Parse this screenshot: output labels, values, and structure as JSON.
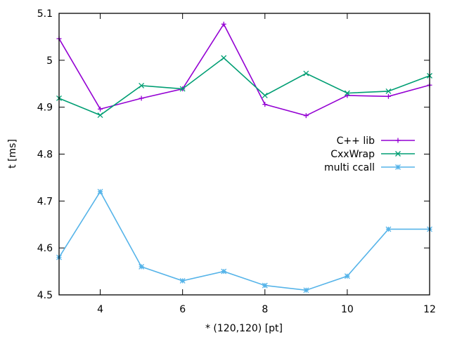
{
  "chart_data": {
    "type": "line",
    "title": "",
    "xlabel": "* (120,120) [pt]",
    "ylabel": "t [ms]",
    "xlim": [
      3,
      12
    ],
    "ylim": [
      4.5,
      5.1
    ],
    "xticks": [
      4,
      6,
      8,
      10,
      12
    ],
    "yticks": [
      4.5,
      4.6,
      4.7,
      4.8,
      4.9,
      5.0,
      5.1
    ],
    "xtick_labels": [
      "4",
      "6",
      "8",
      "10",
      "12"
    ],
    "ytick_labels": [
      "4.5",
      "4.6",
      "4.7",
      "4.8",
      "4.9",
      "5",
      "5.1"
    ],
    "grid": false,
    "legend_position": "right",
    "x": [
      3,
      4,
      5,
      6,
      7,
      8,
      9,
      10,
      11,
      12
    ],
    "series": [
      {
        "name": "C++ lib",
        "color": "#9400d3",
        "marker": "plus",
        "values": [
          5.046,
          4.896,
          4.919,
          4.939,
          5.077,
          4.906,
          4.882,
          4.925,
          4.923,
          4.947
        ]
      },
      {
        "name": "CxxWrap",
        "color": "#009e73",
        "marker": "cross",
        "values": [
          4.919,
          4.883,
          4.946,
          4.939,
          5.005,
          4.925,
          4.972,
          4.93,
          4.934,
          4.967
        ]
      },
      {
        "name": "multi ccall",
        "color": "#56b4e9",
        "marker": "star",
        "values": [
          4.58,
          4.72,
          4.56,
          4.53,
          4.55,
          4.52,
          4.51,
          4.54,
          4.64,
          4.64
        ]
      }
    ]
  }
}
